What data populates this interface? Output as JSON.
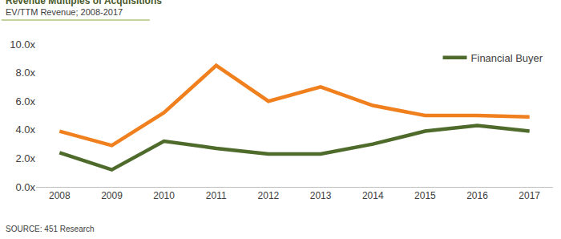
{
  "chart_data": {
    "type": "line",
    "title": "Revenue Multiples of Acquisitions",
    "subtitle": "EV/TTM Revenue; 2008-2017",
    "source": "SOURCE: 451 Research",
    "categories": [
      "2008",
      "2009",
      "2010",
      "2011",
      "2012",
      "2013",
      "2014",
      "2015",
      "2016",
      "2017"
    ],
    "series": [
      {
        "color": "#f07f1d",
        "values": [
          3.9,
          2.9,
          5.2,
          8.5,
          6.0,
          7.0,
          5.7,
          5.0,
          5.0,
          4.9
        ]
      },
      {
        "name": "Financial Buyer",
        "color": "#4e6b2b",
        "values": [
          2.4,
          1.2,
          3.2,
          2.7,
          2.3,
          2.3,
          3.0,
          3.9,
          4.3,
          3.9
        ]
      }
    ],
    "ylim": [
      0,
      10
    ],
    "yticks": [
      {
        "value": 0,
        "label": "0.0x"
      },
      {
        "value": 2,
        "label": "2.0x"
      },
      {
        "value": 4,
        "label": "4.0x"
      },
      {
        "value": 6,
        "label": "6.0x"
      },
      {
        "value": 8,
        "label": "8.0x"
      },
      {
        "value": 10,
        "label": "10.0x"
      }
    ],
    "grid": false,
    "legend": "top-right"
  }
}
